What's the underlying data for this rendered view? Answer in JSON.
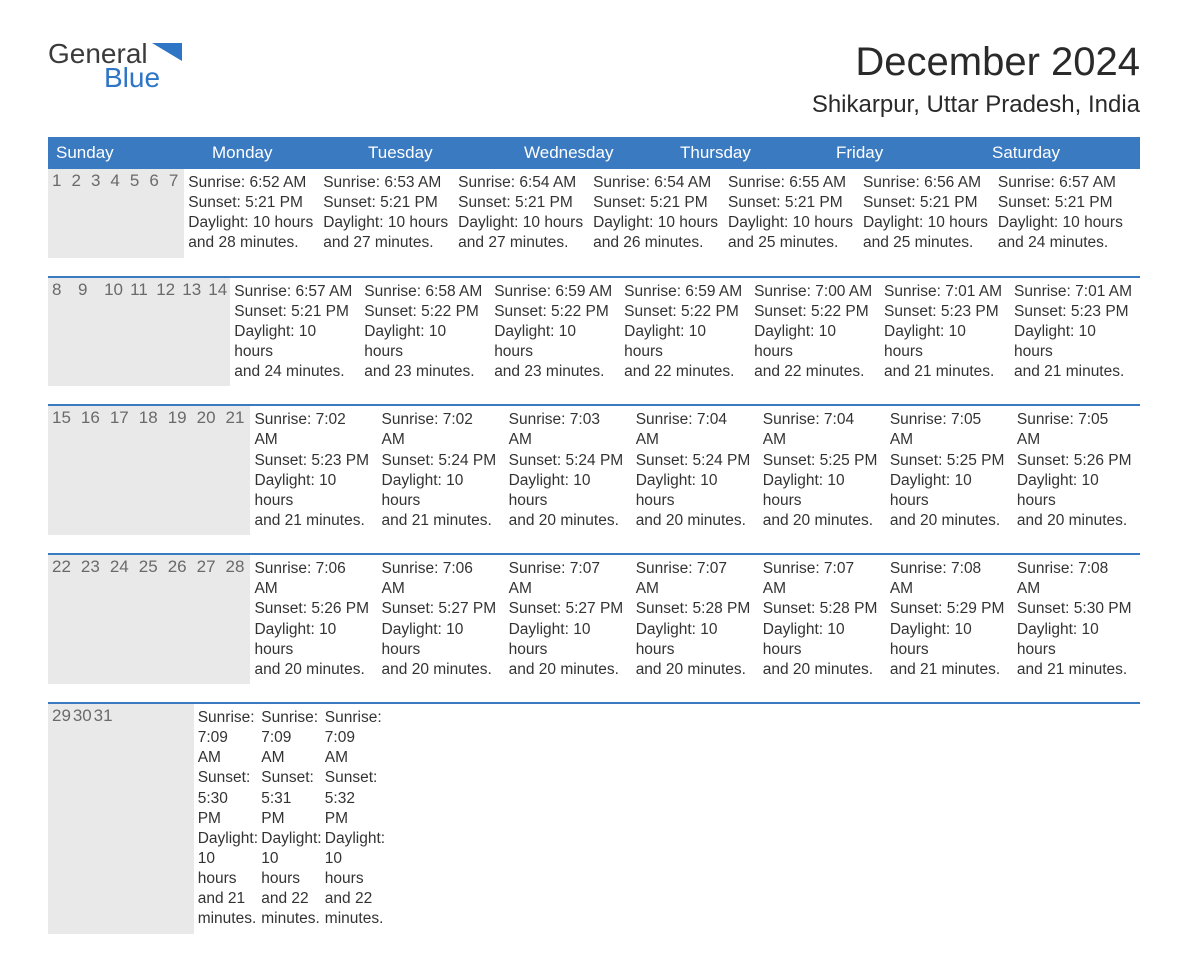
{
  "logo": {
    "word1": "General",
    "word2": "Blue",
    "accent_color": "#2e75c6",
    "text_color": "#3b3b3b"
  },
  "header": {
    "month": "December 2024",
    "location": "Shikarpur, Uttar Pradesh, India"
  },
  "colors": {
    "header_bg": "#3a7ac1",
    "header_text": "#ffffff",
    "daynum_bg": "#e9e9e9",
    "daynum_text": "#6a6a6a",
    "body_text": "#333333",
    "week_border": "#3a7ac1",
    "page_bg": "#ffffff"
  },
  "fonts": {
    "title_size_pt": 30,
    "location_size_pt": 18,
    "dayhead_size_pt": 13,
    "body_size_pt": 11.5
  },
  "day_names": [
    "Sunday",
    "Monday",
    "Tuesday",
    "Wednesday",
    "Thursday",
    "Friday",
    "Saturday"
  ],
  "weeks": [
    [
      {
        "n": "1",
        "sr": "Sunrise: 6:52 AM",
        "ss": "Sunset: 5:21 PM",
        "d1": "Daylight: 10 hours",
        "d2": "and 28 minutes."
      },
      {
        "n": "2",
        "sr": "Sunrise: 6:53 AM",
        "ss": "Sunset: 5:21 PM",
        "d1": "Daylight: 10 hours",
        "d2": "and 27 minutes."
      },
      {
        "n": "3",
        "sr": "Sunrise: 6:54 AM",
        "ss": "Sunset: 5:21 PM",
        "d1": "Daylight: 10 hours",
        "d2": "and 27 minutes."
      },
      {
        "n": "4",
        "sr": "Sunrise: 6:54 AM",
        "ss": "Sunset: 5:21 PM",
        "d1": "Daylight: 10 hours",
        "d2": "and 26 minutes."
      },
      {
        "n": "5",
        "sr": "Sunrise: 6:55 AM",
        "ss": "Sunset: 5:21 PM",
        "d1": "Daylight: 10 hours",
        "d2": "and 25 minutes."
      },
      {
        "n": "6",
        "sr": "Sunrise: 6:56 AM",
        "ss": "Sunset: 5:21 PM",
        "d1": "Daylight: 10 hours",
        "d2": "and 25 minutes."
      },
      {
        "n": "7",
        "sr": "Sunrise: 6:57 AM",
        "ss": "Sunset: 5:21 PM",
        "d1": "Daylight: 10 hours",
        "d2": "and 24 minutes."
      }
    ],
    [
      {
        "n": "8",
        "sr": "Sunrise: 6:57 AM",
        "ss": "Sunset: 5:21 PM",
        "d1": "Daylight: 10 hours",
        "d2": "and 24 minutes."
      },
      {
        "n": "9",
        "sr": "Sunrise: 6:58 AM",
        "ss": "Sunset: 5:22 PM",
        "d1": "Daylight: 10 hours",
        "d2": "and 23 minutes."
      },
      {
        "n": "10",
        "sr": "Sunrise: 6:59 AM",
        "ss": "Sunset: 5:22 PM",
        "d1": "Daylight: 10 hours",
        "d2": "and 23 minutes."
      },
      {
        "n": "11",
        "sr": "Sunrise: 6:59 AM",
        "ss": "Sunset: 5:22 PM",
        "d1": "Daylight: 10 hours",
        "d2": "and 22 minutes."
      },
      {
        "n": "12",
        "sr": "Sunrise: 7:00 AM",
        "ss": "Sunset: 5:22 PM",
        "d1": "Daylight: 10 hours",
        "d2": "and 22 minutes."
      },
      {
        "n": "13",
        "sr": "Sunrise: 7:01 AM",
        "ss": "Sunset: 5:23 PM",
        "d1": "Daylight: 10 hours",
        "d2": "and 21 minutes."
      },
      {
        "n": "14",
        "sr": "Sunrise: 7:01 AM",
        "ss": "Sunset: 5:23 PM",
        "d1": "Daylight: 10 hours",
        "d2": "and 21 minutes."
      }
    ],
    [
      {
        "n": "15",
        "sr": "Sunrise: 7:02 AM",
        "ss": "Sunset: 5:23 PM",
        "d1": "Daylight: 10 hours",
        "d2": "and 21 minutes."
      },
      {
        "n": "16",
        "sr": "Sunrise: 7:02 AM",
        "ss": "Sunset: 5:24 PM",
        "d1": "Daylight: 10 hours",
        "d2": "and 21 minutes."
      },
      {
        "n": "17",
        "sr": "Sunrise: 7:03 AM",
        "ss": "Sunset: 5:24 PM",
        "d1": "Daylight: 10 hours",
        "d2": "and 20 minutes."
      },
      {
        "n": "18",
        "sr": "Sunrise: 7:04 AM",
        "ss": "Sunset: 5:24 PM",
        "d1": "Daylight: 10 hours",
        "d2": "and 20 minutes."
      },
      {
        "n": "19",
        "sr": "Sunrise: 7:04 AM",
        "ss": "Sunset: 5:25 PM",
        "d1": "Daylight: 10 hours",
        "d2": "and 20 minutes."
      },
      {
        "n": "20",
        "sr": "Sunrise: 7:05 AM",
        "ss": "Sunset: 5:25 PM",
        "d1": "Daylight: 10 hours",
        "d2": "and 20 minutes."
      },
      {
        "n": "21",
        "sr": "Sunrise: 7:05 AM",
        "ss": "Sunset: 5:26 PM",
        "d1": "Daylight: 10 hours",
        "d2": "and 20 minutes."
      }
    ],
    [
      {
        "n": "22",
        "sr": "Sunrise: 7:06 AM",
        "ss": "Sunset: 5:26 PM",
        "d1": "Daylight: 10 hours",
        "d2": "and 20 minutes."
      },
      {
        "n": "23",
        "sr": "Sunrise: 7:06 AM",
        "ss": "Sunset: 5:27 PM",
        "d1": "Daylight: 10 hours",
        "d2": "and 20 minutes."
      },
      {
        "n": "24",
        "sr": "Sunrise: 7:07 AM",
        "ss": "Sunset: 5:27 PM",
        "d1": "Daylight: 10 hours",
        "d2": "and 20 minutes."
      },
      {
        "n": "25",
        "sr": "Sunrise: 7:07 AM",
        "ss": "Sunset: 5:28 PM",
        "d1": "Daylight: 10 hours",
        "d2": "and 20 minutes."
      },
      {
        "n": "26",
        "sr": "Sunrise: 7:07 AM",
        "ss": "Sunset: 5:28 PM",
        "d1": "Daylight: 10 hours",
        "d2": "and 20 minutes."
      },
      {
        "n": "27",
        "sr": "Sunrise: 7:08 AM",
        "ss": "Sunset: 5:29 PM",
        "d1": "Daylight: 10 hours",
        "d2": "and 21 minutes."
      },
      {
        "n": "28",
        "sr": "Sunrise: 7:08 AM",
        "ss": "Sunset: 5:30 PM",
        "d1": "Daylight: 10 hours",
        "d2": "and 21 minutes."
      }
    ],
    [
      {
        "n": "29",
        "sr": "Sunrise: 7:09 AM",
        "ss": "Sunset: 5:30 PM",
        "d1": "Daylight: 10 hours",
        "d2": "and 21 minutes."
      },
      {
        "n": "30",
        "sr": "Sunrise: 7:09 AM",
        "ss": "Sunset: 5:31 PM",
        "d1": "Daylight: 10 hours",
        "d2": "and 22 minutes."
      },
      {
        "n": "31",
        "sr": "Sunrise: 7:09 AM",
        "ss": "Sunset: 5:32 PM",
        "d1": "Daylight: 10 hours",
        "d2": "and 22 minutes."
      },
      null,
      null,
      null,
      null
    ]
  ]
}
